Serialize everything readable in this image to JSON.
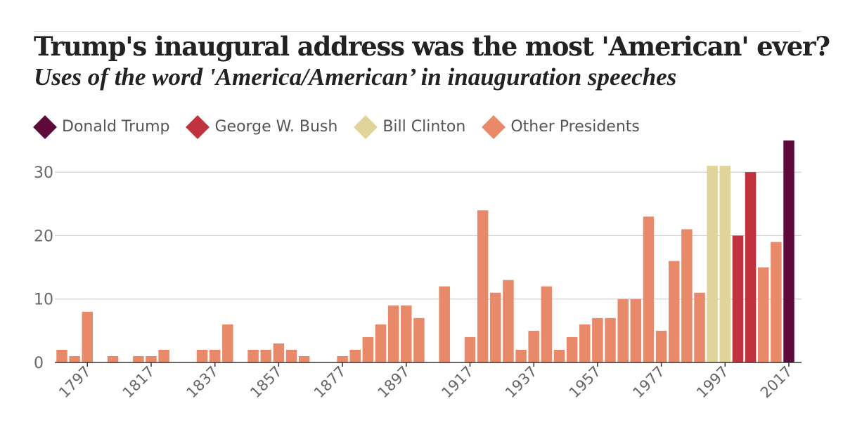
{
  "header": {
    "title": "Trump's inaugural address was the most 'American' ever?",
    "subtitle": "Uses of the word 'America/American’ in inauguration speeches"
  },
  "legend": [
    {
      "label": "Donald Trump",
      "color": "#5e0b3b"
    },
    {
      "label": "George W. Bush",
      "color": "#c1323f"
    },
    {
      "label": "Bill Clinton",
      "color": "#dfd49a"
    },
    {
      "label": "Other Presidents",
      "color": "#e8896a"
    }
  ],
  "chart_data": {
    "type": "bar",
    "title": "Trump's inaugural address was the most 'American' ever?",
    "subtitle": "Uses of the word 'America/American’ in inauguration speeches",
    "xlabel": "",
    "ylabel": "",
    "ylim": [
      0,
      35
    ],
    "yticks": [
      0,
      10,
      20,
      30
    ],
    "xticks": [
      1797,
      1817,
      1837,
      1857,
      1877,
      1897,
      1917,
      1937,
      1957,
      1977,
      1997,
      2017
    ],
    "grid": true,
    "legend_position": "top-left",
    "x": [
      1789,
      1793,
      1797,
      1801,
      1805,
      1809,
      1813,
      1817,
      1821,
      1825,
      1829,
      1833,
      1837,
      1841,
      1845,
      1849,
      1853,
      1857,
      1861,
      1865,
      1869,
      1873,
      1877,
      1881,
      1885,
      1889,
      1893,
      1897,
      1901,
      1905,
      1909,
      1913,
      1917,
      1921,
      1925,
      1929,
      1933,
      1937,
      1941,
      1945,
      1949,
      1953,
      1957,
      1961,
      1965,
      1969,
      1973,
      1977,
      1981,
      1985,
      1989,
      1993,
      1997,
      2001,
      2005,
      2009,
      2013,
      2017
    ],
    "values": [
      2,
      1,
      8,
      0,
      1,
      0,
      1,
      1,
      2,
      0,
      0,
      2,
      2,
      6,
      0,
      2,
      2,
      3,
      2,
      1,
      0,
      0,
      1,
      2,
      4,
      6,
      9,
      9,
      7,
      0,
      12,
      0,
      4,
      24,
      11,
      13,
      2,
      5,
      12,
      2,
      4,
      6,
      7,
      7,
      10,
      10,
      23,
      5,
      16,
      21,
      11,
      31,
      31,
      20,
      30,
      15,
      19,
      35
    ],
    "groups": [
      "Other Presidents",
      "Other Presidents",
      "Other Presidents",
      "Other Presidents",
      "Other Presidents",
      "Other Presidents",
      "Other Presidents",
      "Other Presidents",
      "Other Presidents",
      "Other Presidents",
      "Other Presidents",
      "Other Presidents",
      "Other Presidents",
      "Other Presidents",
      "Other Presidents",
      "Other Presidents",
      "Other Presidents",
      "Other Presidents",
      "Other Presidents",
      "Other Presidents",
      "Other Presidents",
      "Other Presidents",
      "Other Presidents",
      "Other Presidents",
      "Other Presidents",
      "Other Presidents",
      "Other Presidents",
      "Other Presidents",
      "Other Presidents",
      "Other Presidents",
      "Other Presidents",
      "Other Presidents",
      "Other Presidents",
      "Other Presidents",
      "Other Presidents",
      "Other Presidents",
      "Other Presidents",
      "Other Presidents",
      "Other Presidents",
      "Other Presidents",
      "Other Presidents",
      "Other Presidents",
      "Other Presidents",
      "Other Presidents",
      "Other Presidents",
      "Other Presidents",
      "Other Presidents",
      "Other Presidents",
      "Other Presidents",
      "Other Presidents",
      "Other Presidents",
      "Bill Clinton",
      "Bill Clinton",
      "George W. Bush",
      "George W. Bush",
      "Other Presidents",
      "Other Presidents",
      "Donald Trump"
    ]
  }
}
